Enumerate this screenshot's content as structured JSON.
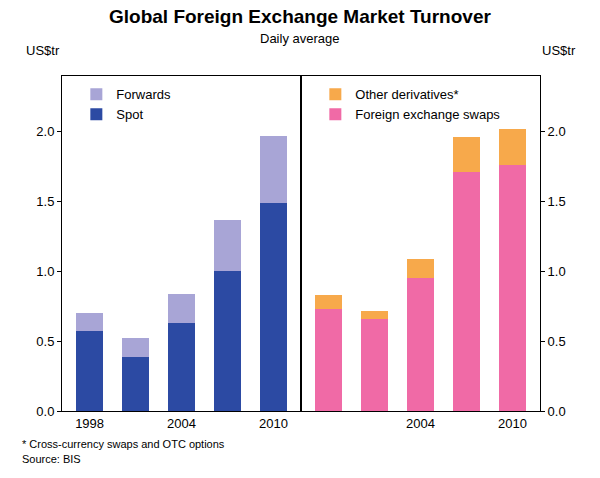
{
  "title": "Global Foreign Exchange Market Turnover",
  "subtitle": "Daily average",
  "notes": [
    "* Cross-currency swaps and OTC options",
    "Source: BIS"
  ],
  "chart_data": [
    {
      "type": "bar",
      "stacked": true,
      "categories": [
        "1998",
        null,
        "2004",
        null,
        "2010"
      ],
      "ylabel": "US$tr",
      "ylim": [
        0,
        2.4
      ],
      "yticks": [
        {
          "value": 0,
          "label": "0.0"
        },
        0.5,
        {
          "value": 1,
          "label": "1.0"
        },
        1.5,
        {
          "value": 2,
          "label": "2.0"
        }
      ],
      "grid": false,
      "legend": "upper left",
      "series": [
        {
          "name": "Spot",
          "color": "#2c4aa3",
          "values": [
            0.57,
            0.39,
            0.63,
            1.0,
            1.49
          ]
        },
        {
          "name": "Forwards",
          "color": "#a8a5d6",
          "values": [
            0.13,
            0.13,
            0.21,
            0.37,
            0.48
          ]
        }
      ]
    },
    {
      "type": "bar",
      "stacked": true,
      "categories": [
        null,
        null,
        "2004",
        null,
        "2010"
      ],
      "ylabel": "US$tr",
      "ylim": [
        0,
        2.4
      ],
      "yticks": [
        {
          "value": 0,
          "label": "0.0"
        },
        0.5,
        {
          "value": 1,
          "label": "1.0"
        },
        1.5,
        {
          "value": 2,
          "label": "2.0"
        }
      ],
      "grid": false,
      "legend": "upper left",
      "series": [
        {
          "name": "Foreign exchange swaps",
          "color": "#f06aa6",
          "values": [
            0.73,
            0.66,
            0.95,
            1.71,
            1.76
          ]
        },
        {
          "name": "Other derivatives*",
          "color": "#f7a94b",
          "values": [
            0.1,
            0.06,
            0.14,
            0.25,
            0.26
          ]
        }
      ]
    }
  ]
}
